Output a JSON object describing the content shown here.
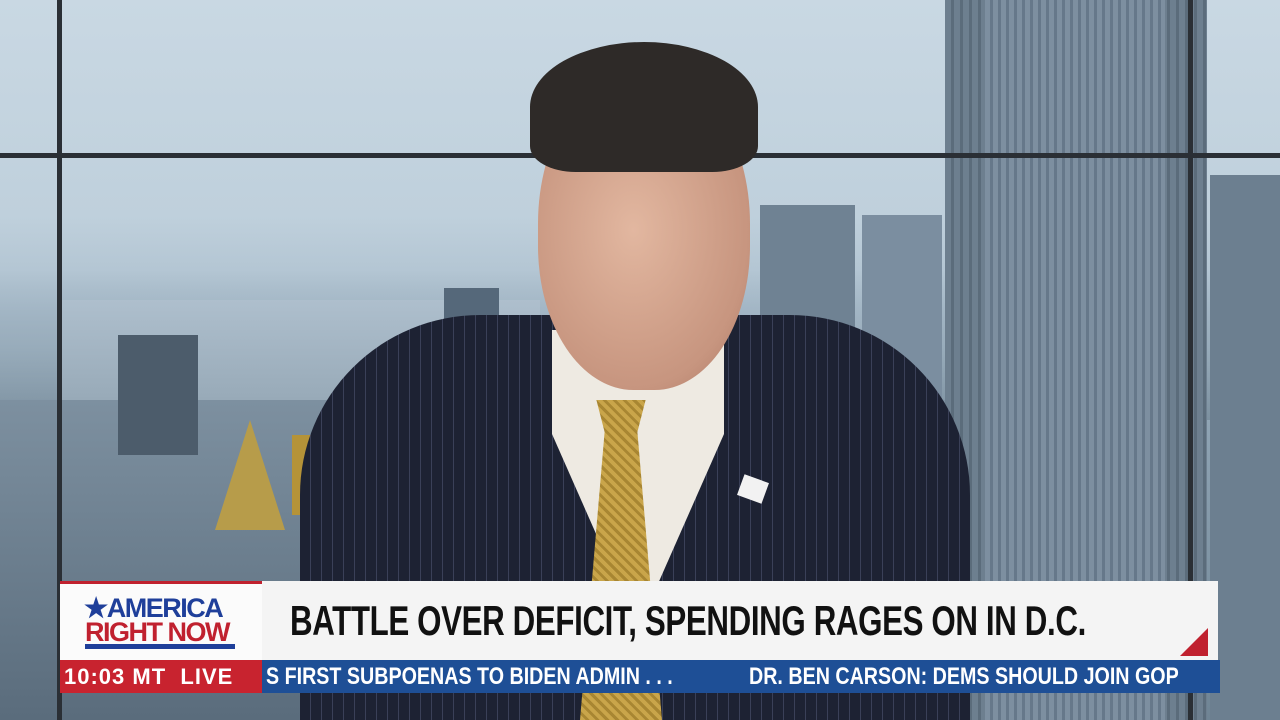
{
  "program": {
    "logo_line1": "★AMERICA",
    "logo_line2": "RIGHT NOW"
  },
  "headline": "BATTLE OVER DEFICIT, SPENDING RAGES ON IN D.C.",
  "clock": {
    "time": "10:03 MT",
    "status": "LIVE"
  },
  "ticker": {
    "items": [
      "S FIRST SUBPOENAS TO BIDEN ADMIN . . .",
      "DR. BEN CARSON: DEMS SHOULD JOIN GOP"
    ]
  },
  "colors": {
    "red": "#c8232f",
    "blue": "#1e4f96",
    "logo_blue": "#1f3f9a",
    "headline_bg": "#f4f4f4"
  }
}
